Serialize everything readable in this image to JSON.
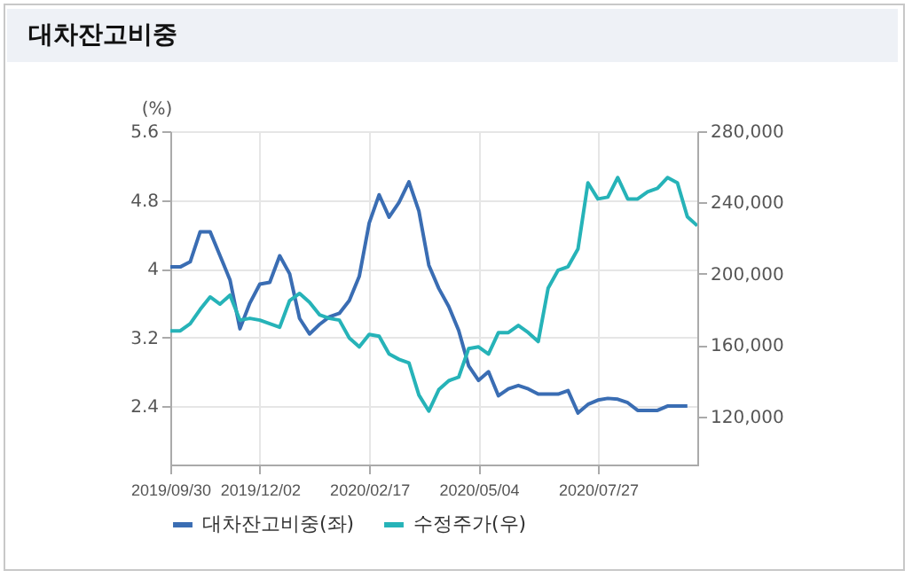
{
  "chart_data": {
    "type": "line",
    "title": "대차잔고비중",
    "ylabel": "(%)",
    "x": [
      "2019-09-30",
      "2019-10-07",
      "2019-10-14",
      "2019-10-21",
      "2019-10-28",
      "2019-11-04",
      "2019-11-11",
      "2019-11-18",
      "2019-11-25",
      "2019-12-02",
      "2019-12-09",
      "2019-12-16",
      "2019-12-23",
      "2019-12-30",
      "2020-01-06",
      "2020-01-13",
      "2020-01-20",
      "2020-01-27",
      "2020-02-03",
      "2020-02-10",
      "2020-02-17",
      "2020-02-24",
      "2020-03-02",
      "2020-03-09",
      "2020-03-16",
      "2020-03-23",
      "2020-03-30",
      "2020-04-06",
      "2020-04-13",
      "2020-04-20",
      "2020-04-27",
      "2020-05-04",
      "2020-05-11",
      "2020-05-18",
      "2020-05-25",
      "2020-06-01",
      "2020-06-08",
      "2020-06-15",
      "2020-06-22",
      "2020-06-29",
      "2020-07-06",
      "2020-07-13",
      "2020-07-20",
      "2020-07-27",
      "2020-08-03",
      "2020-08-10",
      "2020-08-17",
      "2020-08-24",
      "2020-08-31",
      "2020-09-07",
      "2020-09-14",
      "2020-09-21",
      "2020-09-28",
      "2020-10-05"
    ],
    "series": [
      {
        "name": "대차잔고비중(좌)",
        "color": "#3a6db3",
        "values": [
          4.02,
          4.02,
          4.08,
          4.43,
          4.43,
          4.15,
          3.87,
          3.3,
          3.6,
          3.82,
          3.84,
          4.15,
          3.94,
          3.42,
          3.24,
          3.35,
          3.44,
          3.48,
          3.63,
          3.91,
          4.53,
          4.86,
          4.6,
          4.77,
          5.01,
          4.67,
          4.04,
          3.77,
          3.56,
          3.28,
          2.87,
          2.7,
          2.8,
          2.52,
          2.6,
          2.64,
          2.6,
          2.54,
          2.54,
          2.54,
          2.58,
          2.32,
          2.42,
          2.47,
          2.49,
          2.48,
          2.44,
          2.35,
          2.35,
          2.35,
          2.4,
          2.4,
          2.4,
          null
        ]
      },
      {
        "name": "수정주가(우)",
        "color": "#26b3b8",
        "axis": "y2",
        "values": [
          168000,
          168000,
          172000,
          180000,
          187000,
          183000,
          188000,
          174000,
          175000,
          174000,
          172000,
          170000,
          185000,
          189000,
          184000,
          177000,
          175000,
          174000,
          164000,
          159000,
          166000,
          165000,
          155000,
          152000,
          150000,
          132000,
          123000,
          135000,
          140000,
          142000,
          158000,
          159000,
          155000,
          167000,
          167000,
          171000,
          167000,
          162000,
          192000,
          202000,
          204000,
          214000,
          251000,
          242000,
          243000,
          254000,
          242000,
          242000,
          246000,
          248000,
          254000,
          251000,
          232000,
          227000
        ]
      }
    ],
    "xlim": [
      "2019-09-30",
      "2020-10-05"
    ],
    "xticks": [
      {
        "value": "2019-09-30",
        "label": "2019/09/30"
      },
      {
        "value": "2019-12-02",
        "label": "2019/12/02"
      },
      {
        "value": "2020-02-17",
        "label": "2020/02/17"
      },
      {
        "value": "2020-05-04",
        "label": "2020/05/04"
      },
      {
        "value": "2020-07-27",
        "label": "2020/07/27"
      }
    ],
    "ylim": [
      1.72,
      5.6
    ],
    "yticks": [
      {
        "value": 2.4,
        "label": "2.4"
      },
      {
        "value": 3.2,
        "label": "3.2"
      },
      {
        "value": 4,
        "label": "4"
      },
      {
        "value": 4.8,
        "label": "4.8"
      },
      {
        "value": 5.6,
        "label": "5.6"
      }
    ],
    "y2lim": [
      93000,
      280000
    ],
    "y2ticks": [
      {
        "value": 120000,
        "label": "120,000"
      },
      {
        "value": 160000,
        "label": "160,000"
      },
      {
        "value": 200000,
        "label": "200,000"
      },
      {
        "value": 240000,
        "label": "240,000"
      },
      {
        "value": 280000,
        "label": "280,000"
      }
    ],
    "grid": true,
    "legend": "bottom",
    "marker": "none",
    "line_style": "solid"
  }
}
